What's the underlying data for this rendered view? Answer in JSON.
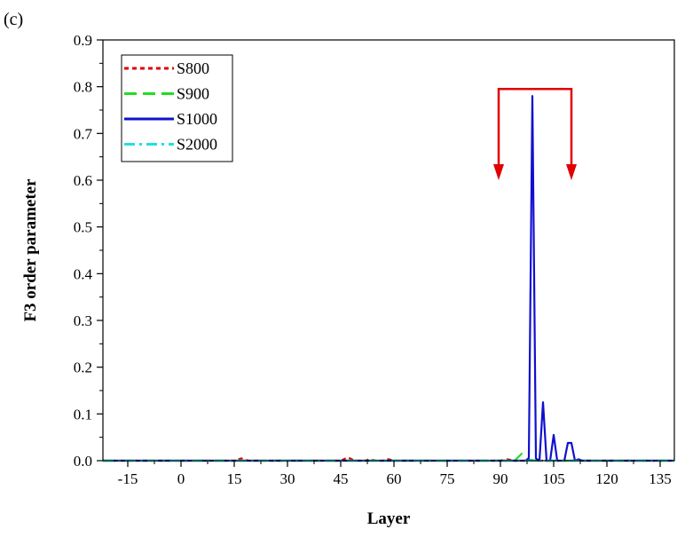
{
  "chart_data": {
    "type": "line",
    "panel_label": "(c)",
    "xlabel": "Layer",
    "ylabel": "F3 order parameter",
    "xlim": [
      -22,
      139
    ],
    "ylim": [
      0,
      0.9
    ],
    "xticks": [
      -15,
      0,
      15,
      30,
      45,
      60,
      75,
      90,
      105,
      120,
      135
    ],
    "yticks": [
      0.0,
      0.1,
      0.2,
      0.3,
      0.4,
      0.5,
      0.6,
      0.7,
      0.8,
      0.9
    ],
    "ytick_labels": [
      "0.0",
      "0.1",
      "0.2",
      "0.3",
      "0.4",
      "0.5",
      "0.6",
      "0.7",
      "0.8",
      "0.9"
    ],
    "legend_position": "top-left",
    "grid": false,
    "series": [
      {
        "name": "S800",
        "color": "#e00000",
        "dash": "short-dash",
        "points": [
          [
            -22,
            0
          ],
          [
            10,
            0
          ],
          [
            15,
            0
          ],
          [
            17,
            0.005
          ],
          [
            19,
            0
          ],
          [
            45,
            0
          ],
          [
            47,
            0.007
          ],
          [
            49,
            0
          ],
          [
            52,
            0
          ],
          [
            53,
            0.003
          ],
          [
            55,
            0
          ],
          [
            57,
            0
          ],
          [
            58,
            0.004
          ],
          [
            60,
            0
          ],
          [
            90,
            0
          ],
          [
            92,
            0.003
          ],
          [
            94,
            0
          ],
          [
            139,
            0
          ]
        ]
      },
      {
        "name": "S900",
        "color": "#22dd22",
        "dash": "long-dash",
        "points": [
          [
            -22,
            0
          ],
          [
            94,
            0
          ],
          [
            96,
            0.015
          ],
          [
            98,
            0.002
          ],
          [
            100,
            0
          ],
          [
            139,
            0
          ]
        ]
      },
      {
        "name": "S1000",
        "color": "#1010d0",
        "dash": "solid",
        "points": [
          [
            -22,
            0
          ],
          [
            97,
            0
          ],
          [
            98,
            0.005
          ],
          [
            99,
            0.78
          ],
          [
            100,
            0.005
          ],
          [
            101,
            0
          ],
          [
            102,
            0.125
          ],
          [
            103,
            0
          ],
          [
            104,
            0
          ],
          [
            105,
            0.055
          ],
          [
            106,
            0
          ],
          [
            107,
            0
          ],
          [
            108,
            0
          ],
          [
            109,
            0.038
          ],
          [
            110,
            0.038
          ],
          [
            111,
            0
          ],
          [
            112,
            0.003
          ],
          [
            113,
            0
          ],
          [
            139,
            0
          ]
        ]
      },
      {
        "name": "S2000",
        "color": "#22e0e0",
        "dash": "dash-dot",
        "points": [
          [
            -22,
            0
          ],
          [
            139,
            0
          ]
        ]
      }
    ],
    "annotation": {
      "type": "bracket-arrows",
      "color": "#e00000",
      "x_left": 89.5,
      "x_right": 110,
      "y_top": 0.795,
      "y_tip": 0.6
    }
  }
}
